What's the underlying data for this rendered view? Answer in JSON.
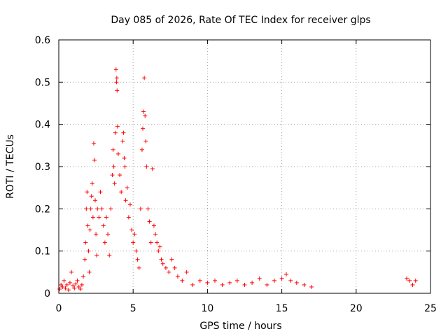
{
  "chart_data": {
    "type": "scatter",
    "title": "Day 085 of 2026, Rate Of TEC Index for receiver glps",
    "xlabel": "GPS time / hours",
    "ylabel": "ROTI / TECUs",
    "xlim": [
      0,
      25
    ],
    "ylim": [
      0,
      0.6
    ],
    "xticks": [
      0,
      5,
      10,
      15,
      20,
      25
    ],
    "xtick_labels": [
      "0",
      "5",
      "10",
      "15",
      "20",
      "25"
    ],
    "yticks": [
      0,
      0.1,
      0.2,
      0.3,
      0.4,
      0.5,
      0.6
    ],
    "ytick_labels": [
      "0",
      "0.1",
      "0.2",
      "0.3",
      "0.4",
      "0.5",
      "0.6"
    ],
    "grid": true,
    "marker": "+",
    "color": "#ff0000",
    "series": [
      {
        "name": "ROTI",
        "points": [
          [
            0.05,
            0.01
          ],
          [
            0.15,
            0.02
          ],
          [
            0.25,
            0.015
          ],
          [
            0.35,
            0.03
          ],
          [
            0.45,
            0.012
          ],
          [
            0.55,
            0.02
          ],
          [
            0.65,
            0.008
          ],
          [
            0.75,
            0.025
          ],
          [
            0.85,
            0.05
          ],
          [
            0.95,
            0.018
          ],
          [
            1.05,
            0.012
          ],
          [
            1.15,
            0.022
          ],
          [
            1.25,
            0.03
          ],
          [
            1.35,
            0.015
          ],
          [
            1.45,
            0.01
          ],
          [
            1.55,
            0.02
          ],
          [
            1.65,
            0.04
          ],
          [
            1.75,
            0.08
          ],
          [
            1.8,
            0.12
          ],
          [
            1.85,
            0.2
          ],
          [
            1.9,
            0.24
          ],
          [
            1.95,
            0.16
          ],
          [
            2.0,
            0.1
          ],
          [
            2.05,
            0.05
          ],
          [
            2.1,
            0.15
          ],
          [
            2.15,
            0.2
          ],
          [
            2.2,
            0.23
          ],
          [
            2.25,
            0.26
          ],
          [
            2.3,
            0.18
          ],
          [
            2.35,
            0.355
          ],
          [
            2.4,
            0.315
          ],
          [
            2.45,
            0.22
          ],
          [
            2.5,
            0.14
          ],
          [
            2.55,
            0.09
          ],
          [
            2.6,
            0.2
          ],
          [
            2.7,
            0.18
          ],
          [
            2.8,
            0.24
          ],
          [
            2.9,
            0.2
          ],
          [
            3.0,
            0.16
          ],
          [
            3.1,
            0.12
          ],
          [
            3.2,
            0.18
          ],
          [
            3.3,
            0.14
          ],
          [
            3.4,
            0.09
          ],
          [
            3.5,
            0.2
          ],
          [
            3.6,
            0.28
          ],
          [
            3.65,
            0.34
          ],
          [
            3.7,
            0.3
          ],
          [
            3.75,
            0.26
          ],
          [
            3.8,
            0.38
          ],
          [
            3.85,
            0.53
          ],
          [
            3.88,
            0.5
          ],
          [
            3.9,
            0.51
          ],
          [
            3.92,
            0.48
          ],
          [
            3.95,
            0.395
          ],
          [
            4.0,
            0.33
          ],
          [
            4.1,
            0.28
          ],
          [
            4.2,
            0.24
          ],
          [
            4.3,
            0.36
          ],
          [
            4.35,
            0.38
          ],
          [
            4.4,
            0.32
          ],
          [
            4.45,
            0.3
          ],
          [
            4.5,
            0.22
          ],
          [
            4.6,
            0.25
          ],
          [
            4.7,
            0.18
          ],
          [
            4.8,
            0.21
          ],
          [
            4.9,
            0.15
          ],
          [
            5.0,
            0.12
          ],
          [
            5.1,
            0.14
          ],
          [
            5.2,
            0.1
          ],
          [
            5.3,
            0.08
          ],
          [
            5.4,
            0.06
          ],
          [
            5.5,
            0.2
          ],
          [
            5.6,
            0.34
          ],
          [
            5.65,
            0.39
          ],
          [
            5.7,
            0.43
          ],
          [
            5.75,
            0.51
          ],
          [
            5.8,
            0.42
          ],
          [
            5.85,
            0.36
          ],
          [
            5.9,
            0.3
          ],
          [
            6.0,
            0.2
          ],
          [
            6.1,
            0.17
          ],
          [
            6.2,
            0.12
          ],
          [
            6.3,
            0.295
          ],
          [
            6.4,
            0.16
          ],
          [
            6.5,
            0.14
          ],
          [
            6.6,
            0.12
          ],
          [
            6.7,
            0.1
          ],
          [
            6.8,
            0.11
          ],
          [
            6.9,
            0.08
          ],
          [
            7.0,
            0.07
          ],
          [
            7.2,
            0.06
          ],
          [
            7.4,
            0.05
          ],
          [
            7.6,
            0.08
          ],
          [
            7.8,
            0.06
          ],
          [
            8.0,
            0.04
          ],
          [
            8.3,
            0.03
          ],
          [
            8.6,
            0.05
          ],
          [
            9.0,
            0.02
          ],
          [
            9.5,
            0.03
          ],
          [
            10.0,
            0.025
          ],
          [
            10.5,
            0.03
          ],
          [
            11.0,
            0.02
          ],
          [
            11.5,
            0.025
          ],
          [
            12.0,
            0.03
          ],
          [
            12.5,
            0.02
          ],
          [
            13.0,
            0.025
          ],
          [
            13.5,
            0.035
          ],
          [
            14.0,
            0.02
          ],
          [
            14.5,
            0.03
          ],
          [
            15.0,
            0.035
          ],
          [
            15.3,
            0.045
          ],
          [
            15.6,
            0.03
          ],
          [
            16.0,
            0.025
          ],
          [
            16.5,
            0.02
          ],
          [
            17.0,
            0.015
          ],
          [
            23.4,
            0.035
          ],
          [
            23.6,
            0.03
          ],
          [
            23.8,
            0.02
          ],
          [
            24.0,
            0.03
          ]
        ]
      }
    ]
  }
}
